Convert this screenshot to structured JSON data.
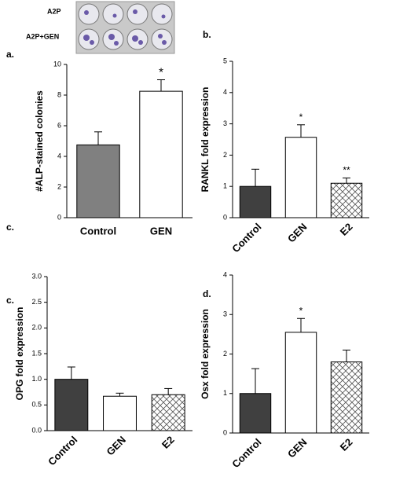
{
  "plate_labels": [
    "A2P",
    "A2P+GEN"
  ],
  "stray_label": "c.",
  "chart_data": [
    {
      "type": "bar",
      "panel_label": "a.",
      "ylabel": "#ALP-stained colonies",
      "categories": [
        "Control",
        "GEN"
      ],
      "values": [
        4.75,
        8.25
      ],
      "errors": [
        0.85,
        0.75
      ],
      "colors": [
        "#808080",
        "#ffffff"
      ],
      "hatched": [
        false,
        false
      ],
      "rotated_labels": false,
      "annotations": [
        {
          "index": 1,
          "text": "*"
        }
      ],
      "ylim": [
        0,
        10
      ],
      "yticks": [
        0,
        2,
        4,
        6,
        8,
        10
      ]
    },
    {
      "type": "bar",
      "panel_label": "b.",
      "ylabel": "RANKL fold expression",
      "categories": [
        "Control",
        "GEN",
        "E2"
      ],
      "values": [
        1.0,
        2.57,
        1.1
      ],
      "errors": [
        0.55,
        0.4,
        0.17
      ],
      "colors": [
        "#404040",
        "#ffffff",
        "#ffffff"
      ],
      "hatched": [
        false,
        false,
        true
      ],
      "rotated_labels": true,
      "annotations": [
        {
          "index": 1,
          "text": "*"
        },
        {
          "index": 2,
          "text": "**"
        }
      ],
      "ylim": [
        0,
        5
      ],
      "yticks": [
        0,
        1,
        2,
        3,
        4,
        5
      ]
    },
    {
      "type": "bar",
      "panel_label": "c.",
      "ylabel": "OPG fold expression",
      "categories": [
        "Control",
        "GEN",
        "E2"
      ],
      "values": [
        1.0,
        0.67,
        0.7
      ],
      "errors": [
        0.24,
        0.06,
        0.12
      ],
      "colors": [
        "#404040",
        "#ffffff",
        "#ffffff"
      ],
      "hatched": [
        false,
        false,
        true
      ],
      "rotated_labels": true,
      "annotations": [],
      "ylim": [
        0,
        3
      ],
      "yticks": [
        {
          "value": 0,
          "label": "0.0"
        },
        0.5,
        {
          "value": 1,
          "label": "1.0"
        },
        1.5,
        {
          "value": 2,
          "label": "2.0"
        },
        2.5,
        {
          "value": 3,
          "label": "3.0"
        }
      ]
    },
    {
      "type": "bar",
      "panel_label": "d.",
      "ylabel": "Osx fold expression",
      "categories": [
        "Control",
        "GEN",
        "E2"
      ],
      "values": [
        1.0,
        2.55,
        1.8
      ],
      "errors": [
        0.63,
        0.35,
        0.3
      ],
      "colors": [
        "#404040",
        "#ffffff",
        "#ffffff"
      ],
      "hatched": [
        false,
        false,
        true
      ],
      "rotated_labels": true,
      "annotations": [
        {
          "index": 1,
          "text": "*"
        }
      ],
      "ylim": [
        0,
        4
      ],
      "yticks": [
        0,
        1,
        2,
        3,
        4
      ]
    }
  ]
}
